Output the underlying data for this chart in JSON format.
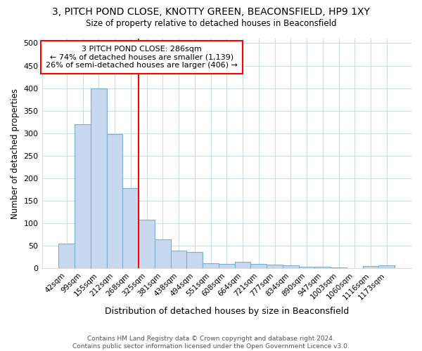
{
  "title": "3, PITCH POND CLOSE, KNOTTY GREEN, BEACONSFIELD, HP9 1XY",
  "subtitle": "Size of property relative to detached houses in Beaconsfield",
  "xlabel": "Distribution of detached houses by size in Beaconsfield",
  "ylabel": "Number of detached properties",
  "footer": "Contains HM Land Registry data © Crown copyright and database right 2024.\nContains public sector information licensed under the Open Government Licence v3.0.",
  "bar_labels": [
    "42sqm",
    "99sqm",
    "155sqm",
    "212sqm",
    "268sqm",
    "325sqm",
    "381sqm",
    "438sqm",
    "494sqm",
    "551sqm",
    "608sqm",
    "664sqm",
    "721sqm",
    "777sqm",
    "834sqm",
    "890sqm",
    "947sqm",
    "1003sqm",
    "1060sqm",
    "1116sqm",
    "1173sqm"
  ],
  "bar_values": [
    55,
    320,
    400,
    298,
    178,
    108,
    65,
    40,
    36,
    12,
    10,
    15,
    10,
    8,
    6,
    4,
    3,
    2,
    1,
    5,
    6
  ],
  "bar_color": "#c8d8ee",
  "bar_edge_color": "#7aafd4",
  "background_color": "#ffffff",
  "grid_color": "#d0dce8",
  "vline_x": 4.5,
  "vline_color": "red",
  "annotation_title": "3 PITCH POND CLOSE: 286sqm",
  "annotation_line1": "← 74% of detached houses are smaller (1,139)",
  "annotation_line2": "26% of semi-detached houses are larger (406) →",
  "annotation_box_color": "white",
  "annotation_box_edge_color": "red",
  "ylim": [
    0,
    510
  ],
  "yticks": [
    0,
    50,
    100,
    150,
    200,
    250,
    300,
    350,
    400,
    450,
    500
  ]
}
